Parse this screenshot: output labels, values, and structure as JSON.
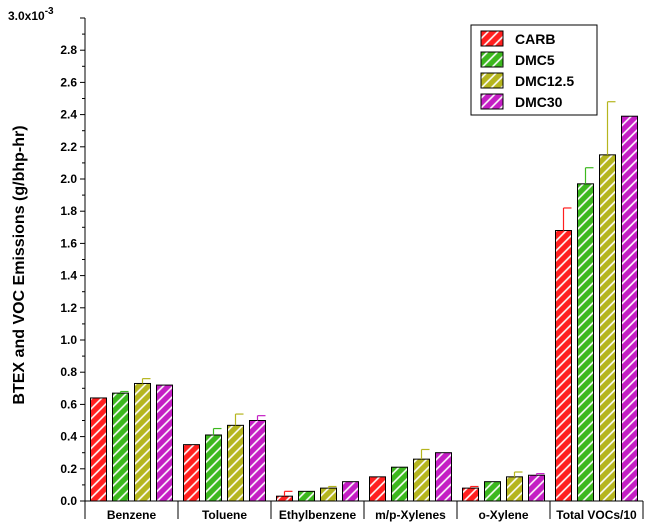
{
  "chart_data": {
    "type": "bar",
    "ylabel": "BTEX and VOC Emissions (g/bhp-hr)",
    "y_exponent_label": "3.0x10",
    "y_exponent_power": "-3",
    "ylim": [
      0,
      3.0
    ],
    "yticks": [
      "0.0",
      "0.2",
      "0.4",
      "0.6",
      "0.8",
      "1.0",
      "1.2",
      "1.4",
      "1.6",
      "1.8",
      "2.0",
      "2.2",
      "2.4",
      "2.6",
      "2.8"
    ],
    "categories": [
      "Benzene",
      "Toluene",
      "Ethylbenzene",
      "m/p-Xylenes",
      "o-Xylene",
      "Total VOCs/10"
    ],
    "legend_position": "top-right",
    "series": [
      {
        "name": "CARB",
        "color": "#ff1f1f",
        "values": [
          0.64,
          0.35,
          0.03,
          0.15,
          0.08,
          1.68
        ],
        "errors": [
          0.0,
          0.0,
          0.03,
          0.0,
          0.01,
          0.14
        ]
      },
      {
        "name": "DMC5",
        "color": "#3cb81e",
        "values": [
          0.67,
          0.41,
          0.06,
          0.21,
          0.12,
          1.97
        ],
        "errors": [
          0.01,
          0.04,
          0.0,
          0.0,
          0.0,
          0.1
        ]
      },
      {
        "name": "DMC12.5",
        "color": "#b5b51e",
        "values": [
          0.73,
          0.47,
          0.08,
          0.26,
          0.15,
          2.15
        ],
        "errors": [
          0.03,
          0.07,
          0.01,
          0.06,
          0.03,
          0.33
        ]
      },
      {
        "name": "DMC30",
        "color": "#c41ec4",
        "values": [
          0.72,
          0.5,
          0.12,
          0.3,
          0.16,
          2.39
        ],
        "errors": [
          0.0,
          0.03,
          0.0,
          0.0,
          0.01,
          0.0
        ]
      }
    ]
  }
}
